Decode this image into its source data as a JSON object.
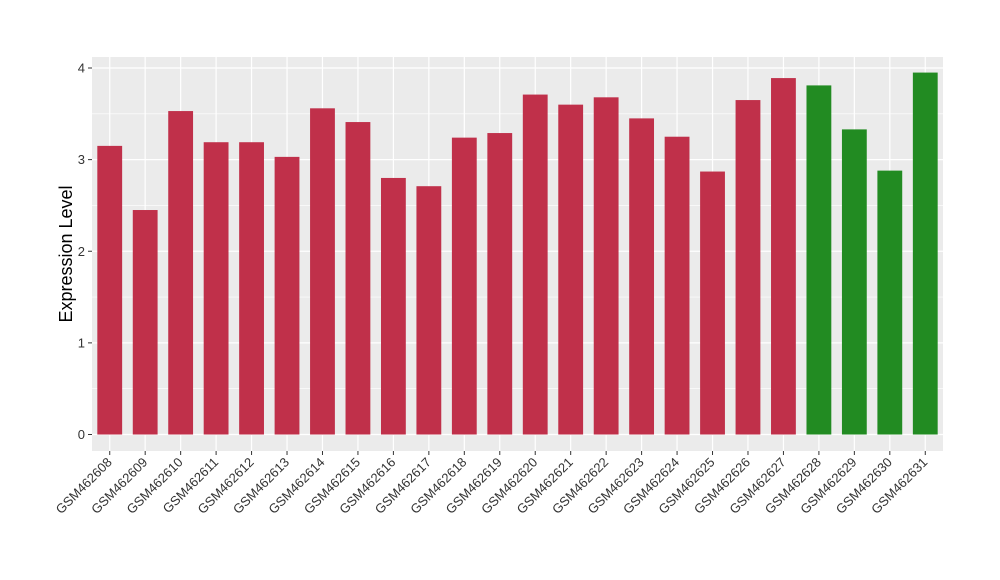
{
  "chart_data": {
    "type": "bar",
    "title": "",
    "xlabel": "",
    "ylabel": "Expression Level",
    "ylim": [
      -0.18,
      4.12
    ],
    "yticks": [
      0,
      1,
      2,
      3,
      4
    ],
    "grid": true,
    "categories": [
      "GSM462608",
      "GSM462609",
      "GSM462610",
      "GSM462611",
      "GSM462612",
      "GSM462613",
      "GSM462614",
      "GSM462615",
      "GSM462616",
      "GSM462617",
      "GSM462618",
      "GSM462619",
      "GSM462620",
      "GSM462621",
      "GSM462622",
      "GSM462623",
      "GSM462624",
      "GSM462625",
      "GSM462626",
      "GSM462627",
      "GSM462628",
      "GSM462629",
      "GSM462630",
      "GSM462631"
    ],
    "values": [
      3.15,
      2.45,
      3.53,
      3.19,
      3.19,
      3.03,
      3.56,
      3.41,
      2.8,
      2.71,
      3.24,
      3.29,
      3.71,
      3.6,
      3.68,
      3.45,
      3.25,
      2.87,
      3.65,
      3.89,
      3.81,
      3.33,
      2.88,
      3.95
    ],
    "groups": [
      "red",
      "red",
      "red",
      "red",
      "red",
      "red",
      "red",
      "red",
      "red",
      "red",
      "red",
      "red",
      "red",
      "red",
      "red",
      "red",
      "red",
      "red",
      "red",
      "red",
      "green",
      "green",
      "green",
      "green"
    ],
    "colors": {
      "red": "#c0304a",
      "green": "#228b22",
      "panel": "#ebebeb",
      "grid": "#ffffff"
    }
  }
}
